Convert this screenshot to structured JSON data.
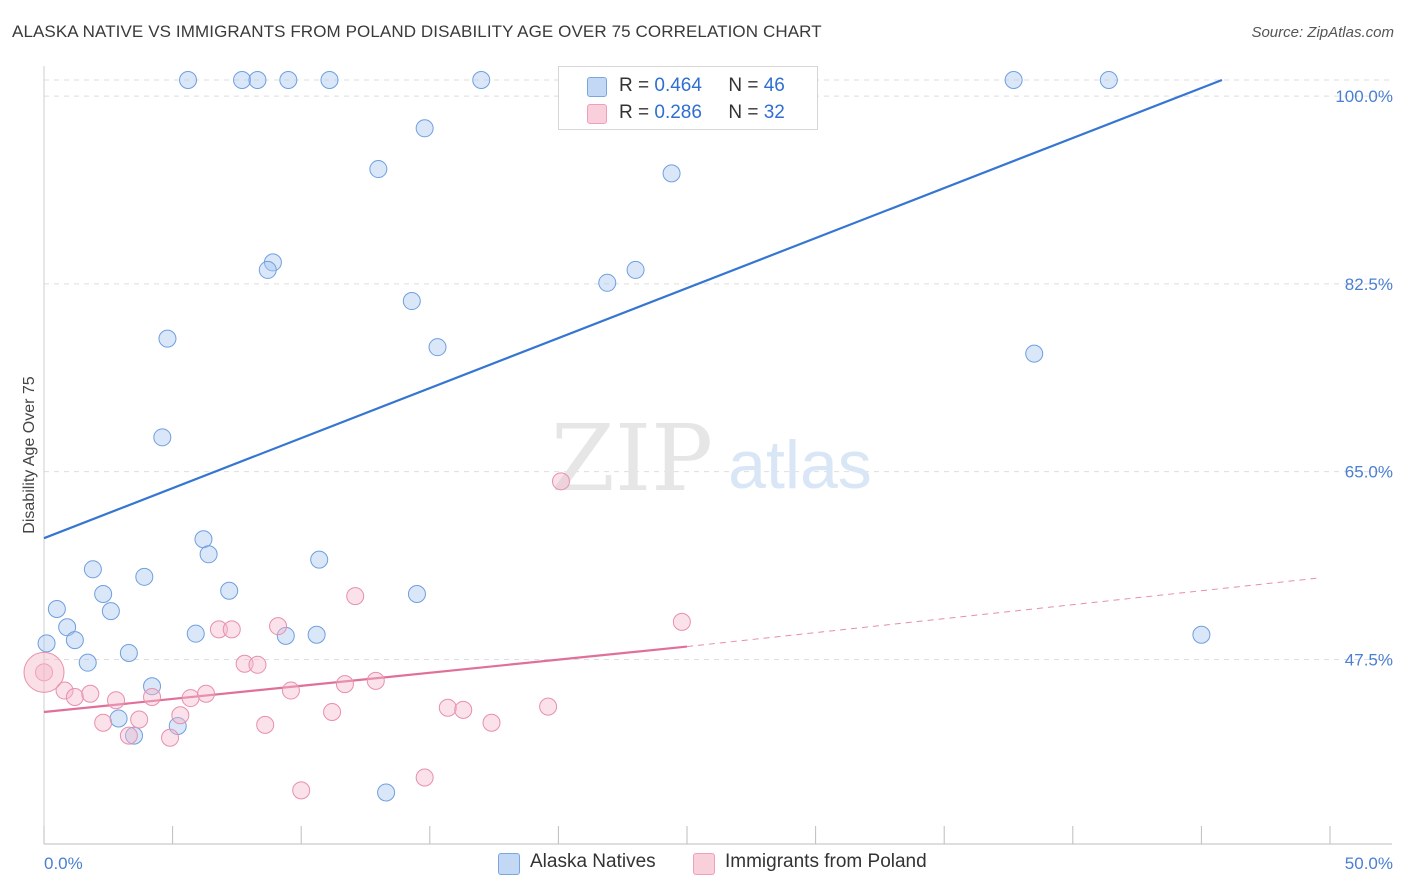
{
  "title": "ALASKA NATIVE VS IMMIGRANTS FROM POLAND DISABILITY AGE OVER 75 CORRELATION CHART",
  "source": "Source: ZipAtlas.com",
  "watermark": {
    "zip": "ZIP",
    "atlas": "atlas"
  },
  "legend": {
    "r_label": "R =",
    "n_label": "N =",
    "rows": [
      {
        "r": "0.464",
        "n": "46",
        "color": "#a8c6f0"
      },
      {
        "r": "0.286",
        "n": "32",
        "color": "#f5b8ca"
      }
    ]
  },
  "chart_data": {
    "type": "scatter",
    "title": "ALASKA NATIVE VS IMMIGRANTS FROM POLAND DISABILITY AGE OVER 75 CORRELATION CHART",
    "xlabel": "",
    "ylabel": "Disability Age Over 75",
    "xlim": [
      0,
      50
    ],
    "ylim": [
      30.3,
      101.5
    ],
    "x_tick_labels": [
      "0.0%",
      "50.0%"
    ],
    "y_ticks": [
      47.5,
      65.0,
      82.5,
      100.0
    ],
    "y_tick_labels": [
      "47.5%",
      "65.0%",
      "82.5%",
      "100.0%"
    ],
    "grid": true,
    "legend_position": "top-center",
    "series": [
      {
        "name": "Alaska Natives",
        "color": "#a8c6f0",
        "stroke": "#6f9fdf",
        "trend": {
          "x": [
            0,
            45.8
          ],
          "y": [
            58.8,
            101.5
          ],
          "color": "#3476d2"
        },
        "points": [
          [
            5.6,
            101.5
          ],
          [
            7.7,
            101.5
          ],
          [
            8.3,
            101.5
          ],
          [
            9.5,
            101.5
          ],
          [
            11.1,
            101.5
          ],
          [
            17.0,
            101.5
          ],
          [
            20.6,
            101.5
          ],
          [
            29.0,
            101.5
          ],
          [
            37.7,
            101.5
          ],
          [
            41.4,
            101.5
          ],
          [
            14.8,
            97.0
          ],
          [
            13.0,
            93.2
          ],
          [
            24.4,
            92.8
          ],
          [
            8.9,
            84.5
          ],
          [
            8.7,
            83.8
          ],
          [
            21.9,
            82.6
          ],
          [
            23.0,
            83.8
          ],
          [
            14.3,
            80.9
          ],
          [
            4.8,
            77.4
          ],
          [
            15.3,
            76.6
          ],
          [
            38.5,
            76.0
          ],
          [
            4.6,
            68.2
          ],
          [
            6.2,
            58.7
          ],
          [
            6.4,
            57.3
          ],
          [
            1.9,
            55.9
          ],
          [
            3.9,
            55.2
          ],
          [
            10.7,
            56.8
          ],
          [
            7.2,
            53.9
          ],
          [
            2.3,
            53.6
          ],
          [
            14.5,
            53.6
          ],
          [
            0.5,
            52.2
          ],
          [
            2.6,
            52.0
          ],
          [
            0.9,
            50.5
          ],
          [
            1.2,
            49.3
          ],
          [
            5.9,
            49.9
          ],
          [
            9.4,
            49.7
          ],
          [
            10.6,
            49.8
          ],
          [
            45.0,
            49.8
          ],
          [
            0.1,
            49.0
          ],
          [
            3.3,
            48.1
          ],
          [
            1.7,
            47.2
          ],
          [
            4.2,
            45.0
          ],
          [
            2.9,
            42.0
          ],
          [
            5.2,
            41.3
          ],
          [
            3.5,
            40.4
          ],
          [
            13.3,
            35.1
          ]
        ]
      },
      {
        "name": "Immigrants from Poland",
        "color": "#f5b8ca",
        "stroke": "#e890ac",
        "trend": {
          "x": [
            0,
            25.0
          ],
          "y": [
            42.6,
            48.7
          ],
          "color": "#e0709a"
        },
        "trend_extension": {
          "x": [
            25.0,
            49.6
          ],
          "y": [
            48.7,
            55.1
          ]
        },
        "points": [
          [
            0.0,
            46.3
          ],
          [
            0.8,
            44.6
          ],
          [
            1.2,
            44.0
          ],
          [
            1.8,
            44.3
          ],
          [
            2.3,
            41.6
          ],
          [
            2.8,
            43.7
          ],
          [
            3.3,
            40.4
          ],
          [
            3.7,
            41.9
          ],
          [
            4.2,
            44.0
          ],
          [
            4.9,
            40.2
          ],
          [
            5.3,
            42.3
          ],
          [
            5.7,
            43.9
          ],
          [
            6.3,
            44.3
          ],
          [
            6.8,
            50.3
          ],
          [
            7.3,
            50.3
          ],
          [
            7.8,
            47.1
          ],
          [
            8.3,
            47.0
          ],
          [
            8.6,
            41.4
          ],
          [
            9.1,
            50.6
          ],
          [
            9.6,
            44.6
          ],
          [
            10.0,
            35.3
          ],
          [
            11.2,
            42.6
          ],
          [
            11.7,
            45.2
          ],
          [
            12.1,
            53.4
          ],
          [
            12.9,
            45.5
          ],
          [
            14.8,
            36.5
          ],
          [
            15.7,
            43.0
          ],
          [
            16.3,
            42.8
          ],
          [
            17.4,
            41.6
          ],
          [
            19.6,
            43.1
          ],
          [
            20.1,
            64.1
          ],
          [
            24.8,
            51.0
          ]
        ]
      }
    ]
  }
}
